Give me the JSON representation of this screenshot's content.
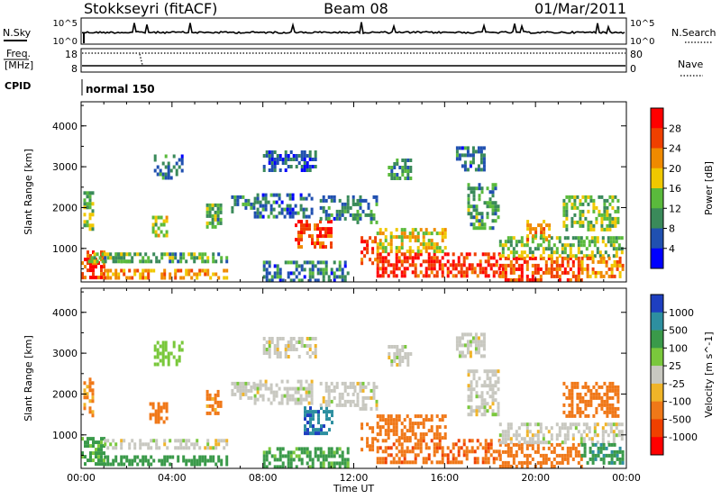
{
  "header": {
    "station": "Stokkseyri (fitACF)",
    "beam": "Beam 08",
    "date": "01/Mar/2011"
  },
  "strip_labels": {
    "nsky": "N.Sky",
    "nsearch": "N.Search",
    "freq": "Freq.",
    "mhz": "[MHz]",
    "nave": "Nave",
    "cpid": "CPID",
    "cpid_value": "normal 150",
    "nsky_ticks": [
      "10^5",
      "10^0"
    ],
    "nsearch_ticks": [
      "10^5",
      "10^0"
    ],
    "freq_ticks": [
      "18",
      "8"
    ],
    "nave_ticks": [
      "80",
      "0"
    ]
  },
  "chart_data": [
    {
      "type": "heatmap",
      "name": "power",
      "ylabel": "Slant Range [km]",
      "ylim": [
        180,
        4590
      ],
      "yticks": [
        "1000",
        "2000",
        "3000",
        "4000"
      ],
      "ytick_values": [
        1000,
        2000,
        3000,
        4000
      ],
      "x_hours": [
        0,
        24
      ],
      "colorbar": {
        "label": "Power [dB]",
        "ticks": [
          "4",
          "8",
          "12",
          "16",
          "20",
          "24",
          "28"
        ],
        "colors": [
          "#0000ff",
          "#2050b0",
          "#3a8a5a",
          "#5aba3c",
          "#f0c800",
          "#f08a00",
          "#f04000",
          "#ff0000"
        ]
      },
      "patches": [
        {
          "t0": 0.0,
          "t1": 1.0,
          "r0": 250,
          "r1": 950,
          "v": 26
        },
        {
          "t0": 0.3,
          "t1": 2.2,
          "r0": 700,
          "r1": 900,
          "v": 14
        },
        {
          "t0": 1.0,
          "t1": 6.4,
          "r0": 250,
          "r1": 500,
          "v": 22
        },
        {
          "t0": 1.0,
          "t1": 6.4,
          "r0": 650,
          "r1": 900,
          "v": 12
        },
        {
          "t0": 0.1,
          "t1": 0.5,
          "r0": 1500,
          "r1": 2400,
          "v": 14
        },
        {
          "t0": 3.0,
          "t1": 3.8,
          "r0": 1300,
          "r1": 1800,
          "v": 16
        },
        {
          "t0": 3.2,
          "t1": 4.4,
          "r0": 2700,
          "r1": 3300,
          "v": 8
        },
        {
          "t0": 5.5,
          "t1": 6.1,
          "r0": 1500,
          "r1": 2100,
          "v": 12
        },
        {
          "t0": 6.6,
          "t1": 7.6,
          "r0": 1900,
          "r1": 2300,
          "v": 10
        },
        {
          "t0": 7.6,
          "t1": 10.2,
          "r0": 1800,
          "r1": 2350,
          "v": 8
        },
        {
          "t0": 8.0,
          "t1": 10.3,
          "r0": 2900,
          "r1": 3400,
          "v": 6
        },
        {
          "t0": 9.4,
          "t1": 11.0,
          "r0": 1000,
          "r1": 1700,
          "v": 26
        },
        {
          "t0": 8.0,
          "t1": 11.8,
          "r0": 250,
          "r1": 700,
          "v": 8
        },
        {
          "t0": 10.5,
          "t1": 12.0,
          "r0": 1700,
          "r1": 2300,
          "v": 8
        },
        {
          "t0": 12.0,
          "t1": 13.0,
          "r0": 1600,
          "r1": 2300,
          "v": 10
        },
        {
          "t0": 12.3,
          "t1": 13.0,
          "r0": 600,
          "r1": 1300,
          "v": 26
        },
        {
          "t0": 13.0,
          "t1": 18.4,
          "r0": 300,
          "r1": 900,
          "v": 28
        },
        {
          "t0": 13.0,
          "t1": 16.0,
          "r0": 900,
          "r1": 1500,
          "v": 18
        },
        {
          "t0": 13.5,
          "t1": 14.5,
          "r0": 2700,
          "r1": 3200,
          "v": 10
        },
        {
          "t0": 16.5,
          "t1": 17.8,
          "r0": 2900,
          "r1": 3500,
          "v": 8
        },
        {
          "t0": 17.0,
          "t1": 18.4,
          "r0": 1500,
          "r1": 2600,
          "v": 12
        },
        {
          "t0": 18.4,
          "t1": 22.0,
          "r0": 250,
          "r1": 800,
          "v": 26
        },
        {
          "t0": 18.4,
          "t1": 23.8,
          "r0": 800,
          "r1": 1300,
          "v": 14
        },
        {
          "t0": 19.6,
          "t1": 20.6,
          "r0": 1200,
          "r1": 1700,
          "v": 20
        },
        {
          "t0": 22.0,
          "t1": 23.8,
          "r0": 350,
          "r1": 800,
          "v": 22
        },
        {
          "t0": 21.2,
          "t1": 23.6,
          "r0": 1500,
          "r1": 2300,
          "v": 14
        }
      ]
    },
    {
      "type": "heatmap",
      "name": "velocity",
      "ylabel": "Slant Range [km]",
      "ylim": [
        180,
        4590
      ],
      "yticks": [
        "1000",
        "2000",
        "3000",
        "4000"
      ],
      "ytick_values": [
        1000,
        2000,
        3000,
        4000
      ],
      "x_hours": [
        0,
        24
      ],
      "xticks": [
        "00:00",
        "04:00",
        "08:00",
        "12:00",
        "16:00",
        "20:00",
        "00:00"
      ],
      "xtick_hours": [
        0,
        4,
        8,
        12,
        16,
        20,
        24
      ],
      "xlabel": "Time UT",
      "colorbar": {
        "label": "Velocity [m s^-1]",
        "ticks": [
          "1000",
          "500",
          "100",
          "25",
          "-25",
          "-100",
          "-500",
          "-1000"
        ],
        "colors": [
          "#1e3fc0",
          "#2d8fa0",
          "#3a9a4a",
          "#7ac83c",
          "#c8c8c0",
          "#f0b428",
          "#f07818",
          "#f04000",
          "#ff0000"
        ]
      },
      "patches": [
        {
          "t0": 0.0,
          "t1": 1.0,
          "r0": 250,
          "r1": 950,
          "v": 120
        },
        {
          "t0": 1.0,
          "t1": 6.4,
          "r0": 250,
          "r1": 500,
          "v": 300
        },
        {
          "t0": 1.0,
          "t1": 6.4,
          "r0": 650,
          "r1": 900,
          "v": 0
        },
        {
          "t0": 0.1,
          "t1": 0.5,
          "r0": 1500,
          "r1": 2400,
          "v": -120
        },
        {
          "t0": 3.0,
          "t1": 3.8,
          "r0": 1300,
          "r1": 1800,
          "v": -180
        },
        {
          "t0": 3.2,
          "t1": 4.4,
          "r0": 2700,
          "r1": 3300,
          "v": 60
        },
        {
          "t0": 5.5,
          "t1": 6.1,
          "r0": 1500,
          "r1": 2100,
          "v": -150
        },
        {
          "t0": 6.6,
          "t1": 7.6,
          "r0": 1900,
          "r1": 2300,
          "v": 0
        },
        {
          "t0": 7.6,
          "t1": 10.2,
          "r0": 1800,
          "r1": 2350,
          "v": 0
        },
        {
          "t0": 8.0,
          "t1": 10.3,
          "r0": 2900,
          "r1": 3400,
          "v": 0
        },
        {
          "t0": 9.8,
          "t1": 11.1,
          "r0": 1000,
          "r1": 1700,
          "v": 1000
        },
        {
          "t0": 8.0,
          "t1": 11.8,
          "r0": 250,
          "r1": 700,
          "v": 150
        },
        {
          "t0": 10.5,
          "t1": 12.0,
          "r0": 1700,
          "r1": 2300,
          "v": 0
        },
        {
          "t0": 12.0,
          "t1": 13.0,
          "r0": 1600,
          "r1": 2300,
          "v": 0
        },
        {
          "t0": 12.3,
          "t1": 13.0,
          "r0": 600,
          "r1": 1300,
          "v": -300
        },
        {
          "t0": 13.0,
          "t1": 18.4,
          "r0": 300,
          "r1": 900,
          "v": -400
        },
        {
          "t0": 13.0,
          "t1": 16.0,
          "r0": 900,
          "r1": 1500,
          "v": -300
        },
        {
          "t0": 13.5,
          "t1": 14.5,
          "r0": 2700,
          "r1": 3200,
          "v": 0
        },
        {
          "t0": 16.5,
          "t1": 17.8,
          "r0": 2900,
          "r1": 3500,
          "v": 0
        },
        {
          "t0": 17.0,
          "t1": 18.4,
          "r0": 1500,
          "r1": 2600,
          "v": 0
        },
        {
          "t0": 18.4,
          "t1": 22.0,
          "r0": 250,
          "r1": 800,
          "v": -200
        },
        {
          "t0": 18.4,
          "t1": 23.8,
          "r0": 800,
          "r1": 1300,
          "v": 0
        },
        {
          "t0": 22.0,
          "t1": 23.8,
          "r0": 350,
          "r1": 800,
          "v": 400
        },
        {
          "t0": 21.2,
          "t1": 23.6,
          "r0": 1500,
          "r1": 2300,
          "v": -200
        }
      ]
    }
  ]
}
